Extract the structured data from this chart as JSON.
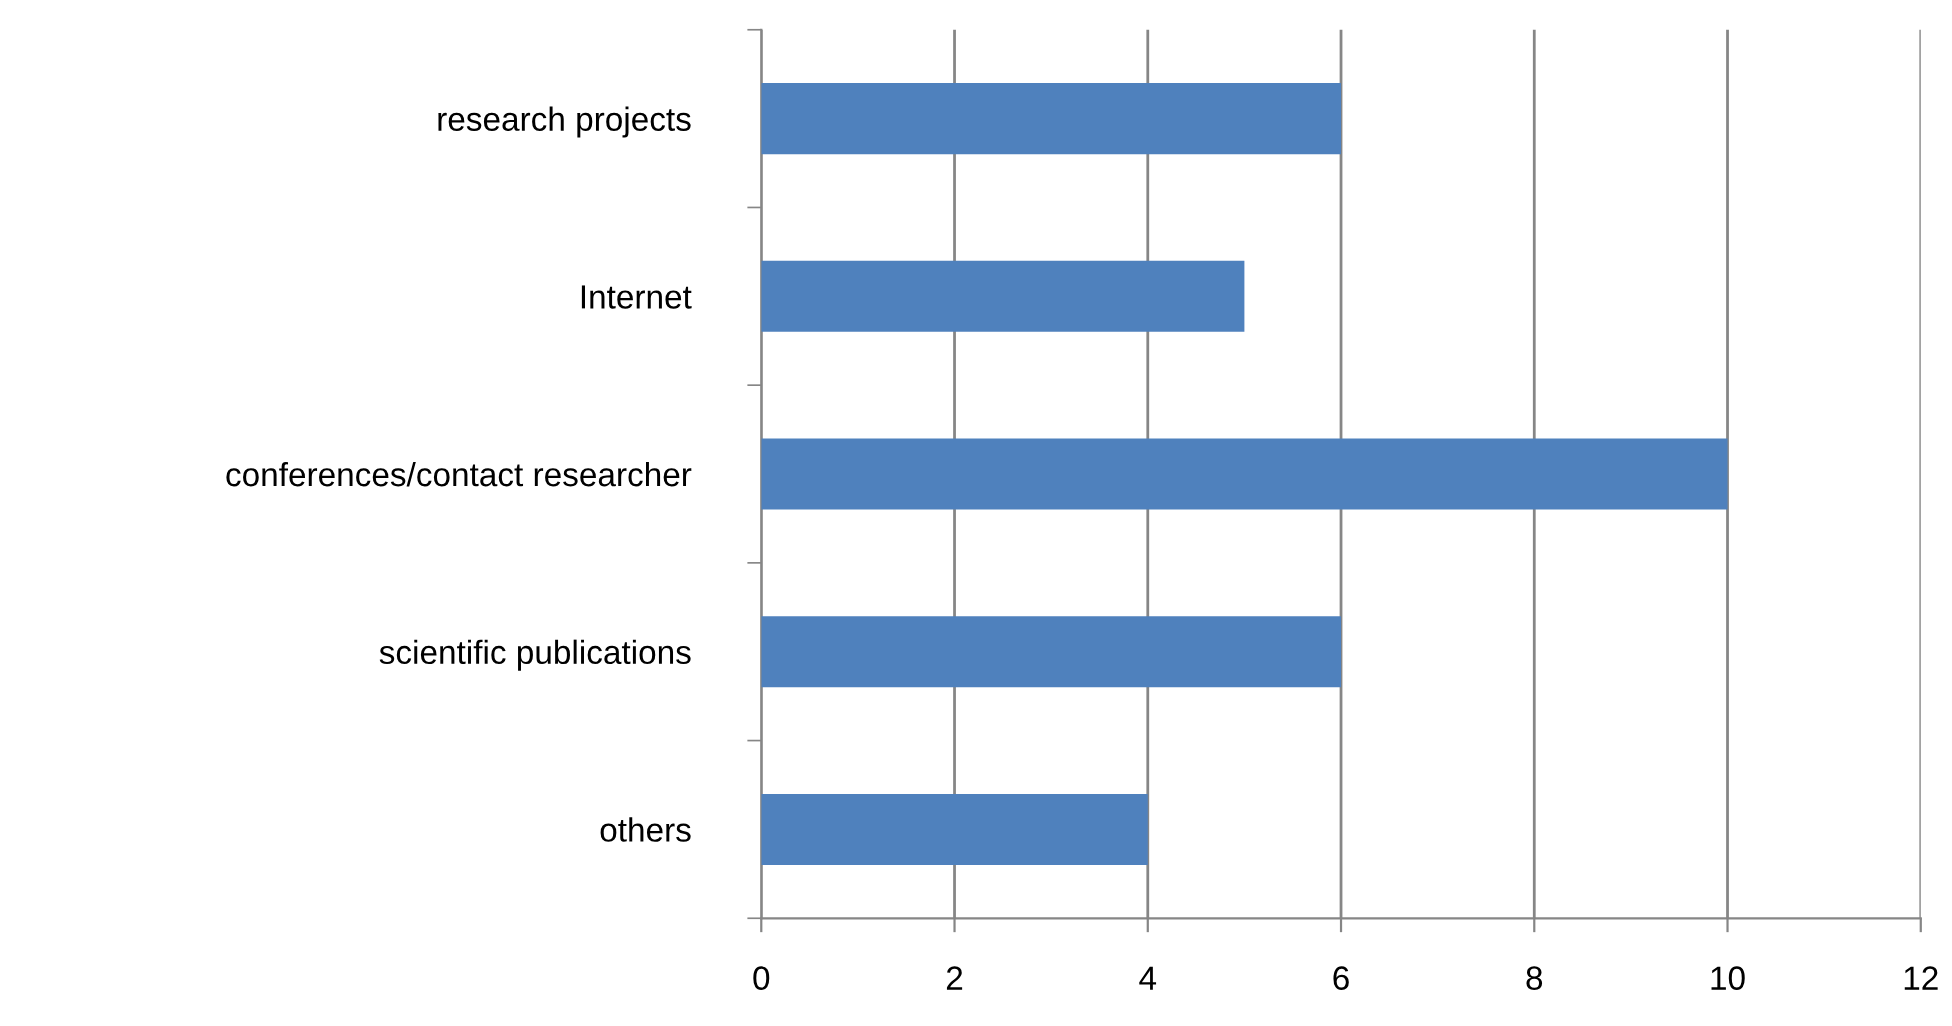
{
  "chart_data": {
    "type": "bar",
    "orientation": "horizontal",
    "categories": [
      "research projects",
      "Internet",
      "conferences/contact researcher",
      "scientific publications",
      "others"
    ],
    "values": [
      6,
      5,
      10,
      6,
      4
    ],
    "color": "#4f81bd",
    "xlim": [
      0,
      12
    ],
    "xticks": [
      0,
      2,
      4,
      6,
      8,
      10,
      12
    ],
    "grid": "x",
    "legend": false
  }
}
